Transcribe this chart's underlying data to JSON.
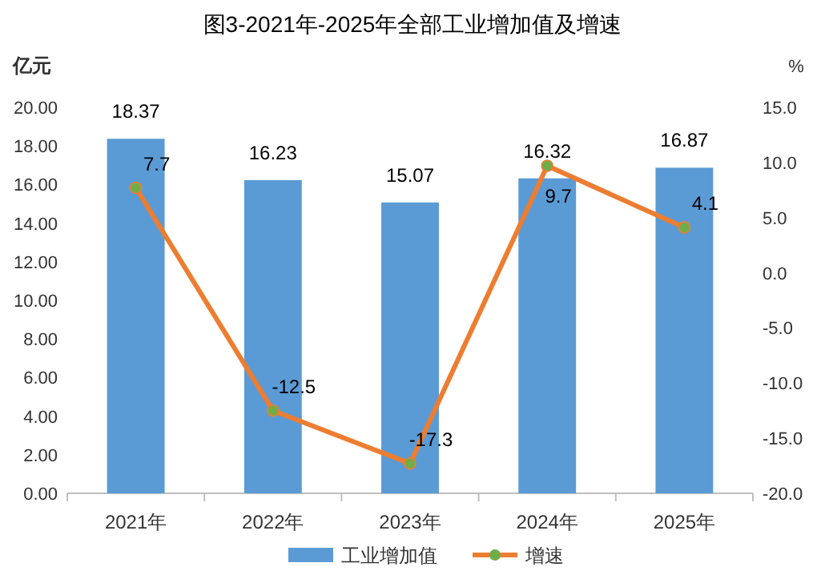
{
  "chart_data": {
    "type": "bar",
    "title": "图3-2021年-2025年全部工业增加值及增速",
    "ylabel": "亿元",
    "y2label": "%",
    "categories": [
      "2021年",
      "2022年",
      "2023年",
      "2024年",
      "2025年"
    ],
    "series": [
      {
        "name": "工业增加值",
        "color": "#5b9bd5",
        "values": [
          18.37,
          16.23,
          15.07,
          16.32,
          16.87
        ]
      },
      {
        "name": "增速",
        "type": "line",
        "axis": "y2",
        "color": "#ed7d31",
        "colors": [
          "#70ad47",
          "#70ad47",
          "#70ad47",
          "#70ad47",
          "#70ad47"
        ],
        "values": [
          7.7,
          -12.5,
          -17.3,
          9.7,
          4.1
        ]
      }
    ],
    "ylim": [
      0,
      20
    ],
    "yticks": [
      {
        "value": 0,
        "label": "0.00"
      },
      {
        "value": 2,
        "label": "2.00"
      },
      {
        "value": 4,
        "label": "4.00"
      },
      {
        "value": 6,
        "label": "6.00"
      },
      {
        "value": 8,
        "label": "8.00"
      },
      {
        "value": 10,
        "label": "10.00"
      },
      {
        "value": 12,
        "label": "12.00"
      },
      {
        "value": 14,
        "label": "14.00"
      },
      {
        "value": 16,
        "label": "16.00"
      },
      {
        "value": 18,
        "label": "18.00"
      },
      {
        "value": 20,
        "label": "20.00"
      }
    ],
    "y2lim": [
      -20,
      15
    ],
    "y2ticks": [
      {
        "value": -20,
        "label": "-20.0"
      },
      {
        "value": -15,
        "label": "-15.0"
      },
      {
        "value": -10,
        "label": "-10.0"
      },
      {
        "value": -5,
        "label": "-5.0"
      },
      {
        "value": 0,
        "label": "0.0"
      },
      {
        "value": 5,
        "label": "5.0"
      },
      {
        "value": 10,
        "label": "10.0"
      },
      {
        "value": 15,
        "label": "15.0"
      }
    ],
    "data_labels": true,
    "legend": "bottom",
    "marker": "circle",
    "line_style": "solid",
    "grid": false
  }
}
